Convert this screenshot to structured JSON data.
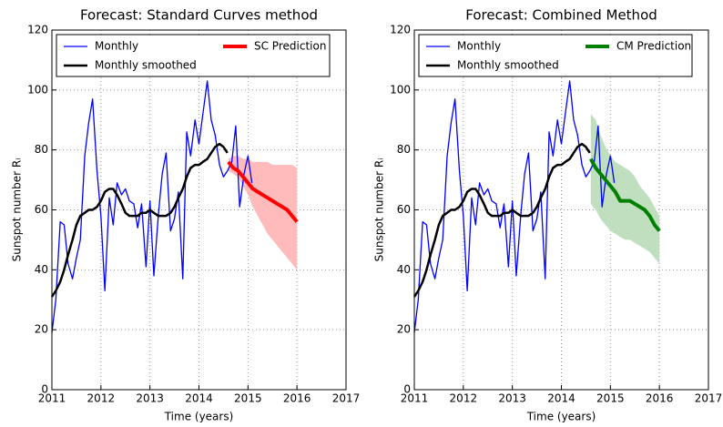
{
  "chart_data": [
    {
      "type": "line",
      "title": "Forecast: Standard Curves method",
      "xlabel": "Time (years)",
      "ylabel": "Sunspot number Rᵢ",
      "xlim": [
        2011,
        2017
      ],
      "ylim": [
        0,
        120
      ],
      "xticks": [
        2011,
        2012,
        2013,
        2014,
        2015,
        2016,
        2017
      ],
      "yticks": [
        0,
        20,
        40,
        60,
        80,
        100,
        120
      ],
      "grid": true,
      "series": [
        {
          "name": "Monthly",
          "color": "#0000ff",
          "x": [
            2011.0,
            2011.08,
            2011.17,
            2011.25,
            2011.33,
            2011.42,
            2011.5,
            2011.58,
            2011.67,
            2011.75,
            2011.83,
            2011.92,
            2012.0,
            2012.08,
            2012.17,
            2012.25,
            2012.33,
            2012.42,
            2012.5,
            2012.58,
            2012.67,
            2012.75,
            2012.83,
            2012.92,
            2013.0,
            2013.08,
            2013.17,
            2013.25,
            2013.33,
            2013.42,
            2013.5,
            2013.58,
            2013.67,
            2013.75,
            2013.83,
            2013.92,
            2014.0,
            2014.08,
            2014.17,
            2014.25,
            2014.33,
            2014.42,
            2014.5,
            2014.58,
            2014.67,
            2014.75,
            2014.83,
            2014.92,
            2015.0,
            2015.08
          ],
          "values": [
            19,
            30,
            56,
            55,
            42,
            37,
            44,
            50,
            78,
            89,
            97,
            73,
            58,
            33,
            64,
            55,
            69,
            65,
            67,
            63,
            62,
            54,
            62,
            41,
            63,
            38,
            58,
            72,
            79,
            53,
            57,
            66,
            37,
            86,
            78,
            90,
            82,
            92,
            103,
            90,
            85,
            75,
            71,
            73,
            76,
            88,
            61,
            72,
            78,
            69
          ]
        },
        {
          "name": "Monthly smoothed",
          "color": "#000000",
          "x": [
            2011.0,
            2011.08,
            2011.17,
            2011.25,
            2011.33,
            2011.42,
            2011.5,
            2011.58,
            2011.67,
            2011.75,
            2011.83,
            2011.92,
            2012.0,
            2012.08,
            2012.17,
            2012.25,
            2012.33,
            2012.42,
            2012.5,
            2012.58,
            2012.67,
            2012.75,
            2012.83,
            2012.92,
            2013.0,
            2013.08,
            2013.17,
            2013.25,
            2013.33,
            2013.42,
            2013.5,
            2013.58,
            2013.67,
            2013.75,
            2013.83,
            2013.92,
            2014.0,
            2014.08,
            2014.17,
            2014.25,
            2014.33,
            2014.42,
            2014.5,
            2014.58
          ],
          "values": [
            31,
            33,
            36,
            40,
            45,
            50,
            55,
            58,
            59,
            60,
            60,
            61,
            63,
            66,
            67,
            67,
            65,
            62,
            59,
            58,
            58,
            58,
            59,
            59,
            60,
            59,
            58,
            58,
            58,
            59,
            61,
            64,
            67,
            71,
            74,
            75,
            75,
            76,
            77,
            79,
            81,
            82,
            81,
            79
          ]
        },
        {
          "name": "SC Prediction",
          "color": "#ff0000",
          "x": [
            2014.6,
            2014.7,
            2014.8,
            2014.9,
            2015.0,
            2015.1,
            2015.2,
            2015.3,
            2015.4,
            2015.5,
            2015.6,
            2015.7,
            2015.8,
            2015.9,
            2016.0
          ],
          "values": [
            76,
            74,
            73,
            71,
            69,
            67,
            66,
            65,
            64,
            63,
            62,
            61,
            60,
            58,
            56
          ]
        }
      ],
      "bands": [
        {
          "color": "#ffbbbb",
          "x": [
            2014.6,
            2014.7,
            2014.8,
            2014.9,
            2015.0,
            2015.1,
            2015.2,
            2015.3,
            2015.4,
            2015.5,
            2015.6,
            2015.7,
            2015.8,
            2015.9,
            2016.0
          ],
          "upper": [
            77,
            78,
            78,
            77,
            77,
            76,
            76,
            76,
            76,
            75,
            75,
            75,
            75,
            75,
            74
          ],
          "lower": [
            73,
            72,
            71,
            68,
            65,
            61,
            58,
            55,
            52,
            50,
            48,
            46,
            44,
            42,
            40
          ]
        }
      ]
    },
    {
      "type": "line",
      "title": "Forecast: Combined Method",
      "xlabel": "Time (years)",
      "ylabel": "Sunspot number Rᵢ",
      "xlim": [
        2011,
        2017
      ],
      "ylim": [
        0,
        120
      ],
      "xticks": [
        2011,
        2012,
        2013,
        2014,
        2015,
        2016,
        2017
      ],
      "yticks": [
        0,
        20,
        40,
        60,
        80,
        100,
        120
      ],
      "grid": true,
      "series": [
        {
          "name": "Monthly",
          "color": "#0000ff",
          "x": [
            2011.0,
            2011.08,
            2011.17,
            2011.25,
            2011.33,
            2011.42,
            2011.5,
            2011.58,
            2011.67,
            2011.75,
            2011.83,
            2011.92,
            2012.0,
            2012.08,
            2012.17,
            2012.25,
            2012.33,
            2012.42,
            2012.5,
            2012.58,
            2012.67,
            2012.75,
            2012.83,
            2012.92,
            2013.0,
            2013.08,
            2013.17,
            2013.25,
            2013.33,
            2013.42,
            2013.5,
            2013.58,
            2013.67,
            2013.75,
            2013.83,
            2013.92,
            2014.0,
            2014.08,
            2014.17,
            2014.25,
            2014.33,
            2014.42,
            2014.5,
            2014.58,
            2014.67,
            2014.75,
            2014.83,
            2014.92,
            2015.0,
            2015.08
          ],
          "values": [
            19,
            30,
            56,
            55,
            42,
            37,
            44,
            50,
            78,
            89,
            97,
            73,
            58,
            33,
            64,
            55,
            69,
            65,
            67,
            63,
            62,
            54,
            62,
            41,
            63,
            38,
            58,
            72,
            79,
            53,
            57,
            66,
            37,
            86,
            78,
            90,
            82,
            92,
            103,
            90,
            85,
            75,
            71,
            73,
            76,
            88,
            61,
            72,
            78,
            69
          ]
        },
        {
          "name": "Monthly smoothed",
          "color": "#000000",
          "x": [
            2011.0,
            2011.08,
            2011.17,
            2011.25,
            2011.33,
            2011.42,
            2011.5,
            2011.58,
            2011.67,
            2011.75,
            2011.83,
            2011.92,
            2012.0,
            2012.08,
            2012.17,
            2012.25,
            2012.33,
            2012.42,
            2012.5,
            2012.58,
            2012.67,
            2012.75,
            2012.83,
            2012.92,
            2013.0,
            2013.08,
            2013.17,
            2013.25,
            2013.33,
            2013.42,
            2013.5,
            2013.58,
            2013.67,
            2013.75,
            2013.83,
            2013.92,
            2014.0,
            2014.08,
            2014.17,
            2014.25,
            2014.33,
            2014.42,
            2014.5,
            2014.58
          ],
          "values": [
            31,
            33,
            36,
            40,
            45,
            50,
            55,
            58,
            59,
            60,
            60,
            61,
            63,
            66,
            67,
            67,
            65,
            62,
            59,
            58,
            58,
            58,
            59,
            59,
            60,
            59,
            58,
            58,
            58,
            59,
            61,
            64,
            67,
            71,
            74,
            75,
            75,
            76,
            77,
            79,
            81,
            82,
            81,
            79
          ]
        },
        {
          "name": "CM Prediction",
          "color": "#008000",
          "x": [
            2014.6,
            2014.7,
            2014.8,
            2014.9,
            2015.0,
            2015.1,
            2015.2,
            2015.3,
            2015.4,
            2015.5,
            2015.6,
            2015.7,
            2015.8,
            2015.9,
            2016.0
          ],
          "values": [
            77,
            74,
            72,
            70,
            68,
            66,
            63,
            63,
            63,
            62,
            61,
            60,
            58,
            55,
            53
          ]
        }
      ],
      "bands": [
        {
          "color": "#bfdfbf",
          "x": [
            2014.6,
            2014.7,
            2014.8,
            2014.9,
            2015.0,
            2015.1,
            2015.2,
            2015.3,
            2015.4,
            2015.5,
            2015.6,
            2015.7,
            2015.8,
            2015.9,
            2016.0
          ],
          "upper": [
            92,
            90,
            85,
            81,
            78,
            76,
            75,
            74,
            73,
            71,
            68,
            66,
            64,
            61,
            58
          ],
          "lower": [
            62,
            60,
            57,
            55,
            53,
            52,
            51,
            50,
            50,
            49,
            48,
            47,
            46,
            44,
            42
          ]
        }
      ]
    }
  ]
}
